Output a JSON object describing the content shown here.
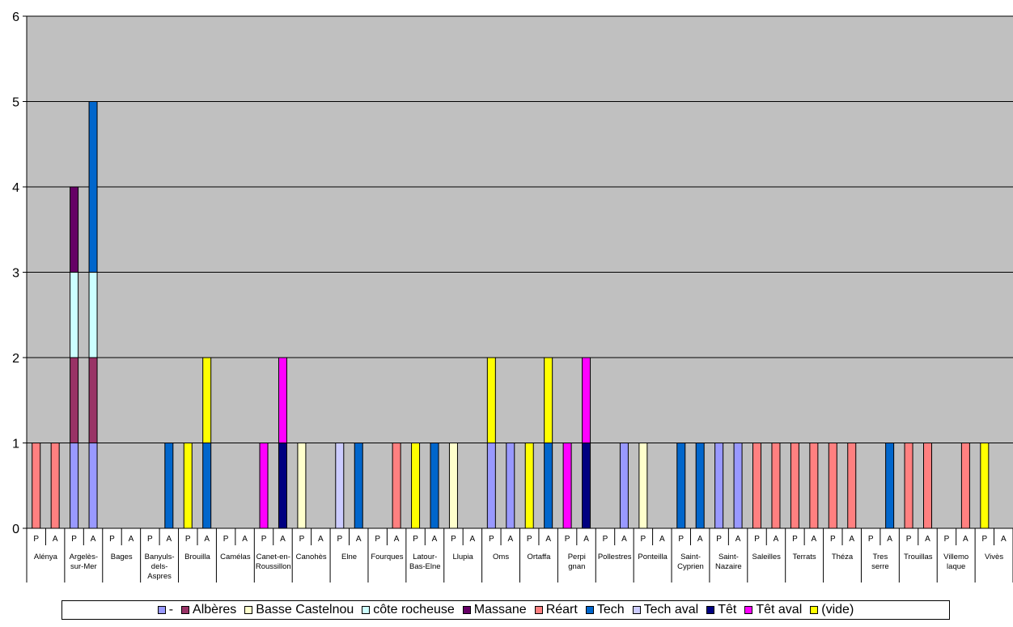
{
  "chart_data": {
    "type": "bar",
    "stacked": true,
    "ylim": [
      0,
      6
    ],
    "yticks": [
      0,
      1,
      2,
      3,
      4,
      5,
      6
    ],
    "grid": true,
    "plot_background": "#C0C0C0",
    "legend_position": "bottom",
    "bar_labels": [
      "P",
      "A"
    ],
    "groups": [
      "Alénya",
      "Argelès-sur-Mer",
      "Bages",
      "Banyuls-dels-Aspres",
      "Brouilla",
      "Camélas",
      "Canet-en-Roussillon",
      "Canohès",
      "Elne",
      "Fourques",
      "Latour-Bas-Elne",
      "Llupia",
      "Oms",
      "Ortaffa",
      "Perpignan",
      "Pollestres",
      "Ponteilla",
      "Saint-Cyprien",
      "Saint-Nazaire",
      "Saleilles",
      "Terrats",
      "Théza",
      "Tresserre",
      "Trouillas",
      "Villemolaque",
      "Vivès"
    ],
    "group_label_lines": [
      [
        "Alénya"
      ],
      [
        "Argelès-",
        "sur-Mer"
      ],
      [
        "Bages"
      ],
      [
        "Banyuls-",
        "dels-",
        "Aspres"
      ],
      [
        "Brouilla"
      ],
      [
        "Camélas"
      ],
      [
        "Canet-en-",
        "Roussillon"
      ],
      [
        "Canohès"
      ],
      [
        "Elne"
      ],
      [
        "Fourques"
      ],
      [
        "Latour-",
        "Bas-Elne"
      ],
      [
        "Llupia"
      ],
      [
        "Oms"
      ],
      [
        "Ortaffa"
      ],
      [
        "Perpi",
        "gnan"
      ],
      [
        "Pollestres"
      ],
      [
        "Ponteilla"
      ],
      [
        "Saint-",
        "Cyprien"
      ],
      [
        "Saint-",
        "Nazaire"
      ],
      [
        "Saleilles"
      ],
      [
        "Terrats"
      ],
      [
        "Théza"
      ],
      [
        "Tres",
        "serre"
      ],
      [
        "Trouillas"
      ],
      [
        "Villemo",
        "laque"
      ],
      [
        "Vivès"
      ]
    ],
    "series": [
      {
        "name": "-",
        "color": "#9999FF",
        "values": [
          [
            0,
            0
          ],
          [
            1,
            1
          ],
          [
            0,
            0
          ],
          [
            0,
            0
          ],
          [
            0,
            0
          ],
          [
            0,
            0
          ],
          [
            0,
            0
          ],
          [
            0,
            0
          ],
          [
            0,
            0
          ],
          [
            0,
            0
          ],
          [
            0,
            0
          ],
          [
            0,
            0
          ],
          [
            1,
            1
          ],
          [
            0,
            0
          ],
          [
            0,
            0
          ],
          [
            0,
            1
          ],
          [
            0,
            0
          ],
          [
            0,
            0
          ],
          [
            1,
            1
          ],
          [
            0,
            0
          ],
          [
            0,
            0
          ],
          [
            0,
            0
          ],
          [
            0,
            0
          ],
          [
            0,
            0
          ],
          [
            0,
            0
          ],
          [
            0,
            0
          ]
        ]
      },
      {
        "name": "Albères",
        "color": "#993366",
        "values": [
          [
            0,
            0
          ],
          [
            1,
            1
          ],
          [
            0,
            0
          ],
          [
            0,
            0
          ],
          [
            0,
            0
          ],
          [
            0,
            0
          ],
          [
            0,
            0
          ],
          [
            0,
            0
          ],
          [
            0,
            0
          ],
          [
            0,
            0
          ],
          [
            0,
            0
          ],
          [
            0,
            0
          ],
          [
            0,
            0
          ],
          [
            0,
            0
          ],
          [
            0,
            0
          ],
          [
            0,
            0
          ],
          [
            0,
            0
          ],
          [
            0,
            0
          ],
          [
            0,
            0
          ],
          [
            0,
            0
          ],
          [
            0,
            0
          ],
          [
            0,
            0
          ],
          [
            0,
            0
          ],
          [
            0,
            0
          ],
          [
            0,
            0
          ],
          [
            0,
            0
          ]
        ]
      },
      {
        "name": "Basse Castelnou",
        "color": "#FFFFCC",
        "values": [
          [
            0,
            0
          ],
          [
            0,
            0
          ],
          [
            0,
            0
          ],
          [
            0,
            0
          ],
          [
            0,
            0
          ],
          [
            0,
            0
          ],
          [
            0,
            0
          ],
          [
            1,
            0
          ],
          [
            0,
            0
          ],
          [
            0,
            0
          ],
          [
            0,
            0
          ],
          [
            1,
            0
          ],
          [
            0,
            0
          ],
          [
            0,
            0
          ],
          [
            0,
            0
          ],
          [
            0,
            0
          ],
          [
            1,
            0
          ],
          [
            0,
            0
          ],
          [
            0,
            0
          ],
          [
            0,
            0
          ],
          [
            0,
            0
          ],
          [
            0,
            0
          ],
          [
            0,
            0
          ],
          [
            0,
            0
          ],
          [
            0,
            0
          ],
          [
            0,
            0
          ]
        ]
      },
      {
        "name": "côte rocheuse",
        "color": "#CCFFFF",
        "values": [
          [
            0,
            0
          ],
          [
            1,
            1
          ],
          [
            0,
            0
          ],
          [
            0,
            0
          ],
          [
            0,
            0
          ],
          [
            0,
            0
          ],
          [
            0,
            0
          ],
          [
            0,
            0
          ],
          [
            0,
            0
          ],
          [
            0,
            0
          ],
          [
            0,
            0
          ],
          [
            0,
            0
          ],
          [
            0,
            0
          ],
          [
            0,
            0
          ],
          [
            0,
            0
          ],
          [
            0,
            0
          ],
          [
            0,
            0
          ],
          [
            0,
            0
          ],
          [
            0,
            0
          ],
          [
            0,
            0
          ],
          [
            0,
            0
          ],
          [
            0,
            0
          ],
          [
            0,
            0
          ],
          [
            0,
            0
          ],
          [
            0,
            0
          ],
          [
            0,
            0
          ]
        ]
      },
      {
        "name": "Massane",
        "color": "#660066",
        "values": [
          [
            0,
            0
          ],
          [
            1,
            0
          ],
          [
            0,
            0
          ],
          [
            0,
            0
          ],
          [
            0,
            0
          ],
          [
            0,
            0
          ],
          [
            0,
            0
          ],
          [
            0,
            0
          ],
          [
            0,
            0
          ],
          [
            0,
            0
          ],
          [
            0,
            0
          ],
          [
            0,
            0
          ],
          [
            0,
            0
          ],
          [
            0,
            0
          ],
          [
            0,
            0
          ],
          [
            0,
            0
          ],
          [
            0,
            0
          ],
          [
            0,
            0
          ],
          [
            0,
            0
          ],
          [
            0,
            0
          ],
          [
            0,
            0
          ],
          [
            0,
            0
          ],
          [
            0,
            0
          ],
          [
            0,
            0
          ],
          [
            0,
            0
          ],
          [
            0,
            0
          ]
        ]
      },
      {
        "name": "Réart",
        "color": "#FF8080",
        "values": [
          [
            1,
            1
          ],
          [
            0,
            0
          ],
          [
            0,
            0
          ],
          [
            0,
            0
          ],
          [
            0,
            0
          ],
          [
            0,
            0
          ],
          [
            0,
            0
          ],
          [
            0,
            0
          ],
          [
            0,
            0
          ],
          [
            0,
            1
          ],
          [
            0,
            0
          ],
          [
            0,
            0
          ],
          [
            0,
            0
          ],
          [
            0,
            0
          ],
          [
            0,
            0
          ],
          [
            0,
            0
          ],
          [
            0,
            0
          ],
          [
            0,
            0
          ],
          [
            0,
            0
          ],
          [
            1,
            1
          ],
          [
            1,
            1
          ],
          [
            1,
            1
          ],
          [
            0,
            0
          ],
          [
            1,
            1
          ],
          [
            0,
            1
          ],
          [
            0,
            0
          ]
        ]
      },
      {
        "name": "Tech",
        "color": "#0066CC",
        "values": [
          [
            0,
            0
          ],
          [
            0,
            2
          ],
          [
            0,
            0
          ],
          [
            0,
            1
          ],
          [
            0,
            1
          ],
          [
            0,
            0
          ],
          [
            0,
            0
          ],
          [
            0,
            0
          ],
          [
            0,
            1
          ],
          [
            0,
            0
          ],
          [
            0,
            1
          ],
          [
            0,
            0
          ],
          [
            0,
            0
          ],
          [
            0,
            1
          ],
          [
            0,
            0
          ],
          [
            0,
            0
          ],
          [
            0,
            0
          ],
          [
            1,
            1
          ],
          [
            0,
            0
          ],
          [
            0,
            0
          ],
          [
            0,
            0
          ],
          [
            0,
            0
          ],
          [
            0,
            1
          ],
          [
            0,
            0
          ],
          [
            0,
            0
          ],
          [
            0,
            0
          ]
        ]
      },
      {
        "name": "Tech aval",
        "color": "#CCCCFF",
        "values": [
          [
            0,
            0
          ],
          [
            0,
            0
          ],
          [
            0,
            0
          ],
          [
            0,
            0
          ],
          [
            0,
            0
          ],
          [
            0,
            0
          ],
          [
            0,
            0
          ],
          [
            0,
            0
          ],
          [
            1,
            0
          ],
          [
            0,
            0
          ],
          [
            0,
            0
          ],
          [
            0,
            0
          ],
          [
            0,
            0
          ],
          [
            0,
            0
          ],
          [
            0,
            0
          ],
          [
            0,
            0
          ],
          [
            0,
            0
          ],
          [
            0,
            0
          ],
          [
            0,
            0
          ],
          [
            0,
            0
          ],
          [
            0,
            0
          ],
          [
            0,
            0
          ],
          [
            0,
            0
          ],
          [
            0,
            0
          ],
          [
            0,
            0
          ],
          [
            0,
            0
          ]
        ]
      },
      {
        "name": "Têt",
        "color": "#000080",
        "values": [
          [
            0,
            0
          ],
          [
            0,
            0
          ],
          [
            0,
            0
          ],
          [
            0,
            0
          ],
          [
            0,
            0
          ],
          [
            0,
            0
          ],
          [
            0,
            1
          ],
          [
            0,
            0
          ],
          [
            0,
            0
          ],
          [
            0,
            0
          ],
          [
            0,
            0
          ],
          [
            0,
            0
          ],
          [
            0,
            0
          ],
          [
            0,
            0
          ],
          [
            0,
            1
          ],
          [
            0,
            0
          ],
          [
            0,
            0
          ],
          [
            0,
            0
          ],
          [
            0,
            0
          ],
          [
            0,
            0
          ],
          [
            0,
            0
          ],
          [
            0,
            0
          ],
          [
            0,
            0
          ],
          [
            0,
            0
          ],
          [
            0,
            0
          ],
          [
            0,
            0
          ]
        ]
      },
      {
        "name": "Têt aval",
        "color": "#FF00FF",
        "values": [
          [
            0,
            0
          ],
          [
            0,
            0
          ],
          [
            0,
            0
          ],
          [
            0,
            0
          ],
          [
            0,
            0
          ],
          [
            0,
            0
          ],
          [
            1,
            1
          ],
          [
            0,
            0
          ],
          [
            0,
            0
          ],
          [
            0,
            0
          ],
          [
            0,
            0
          ],
          [
            0,
            0
          ],
          [
            0,
            0
          ],
          [
            0,
            0
          ],
          [
            1,
            1
          ],
          [
            0,
            0
          ],
          [
            0,
            0
          ],
          [
            0,
            0
          ],
          [
            0,
            0
          ],
          [
            0,
            0
          ],
          [
            0,
            0
          ],
          [
            0,
            0
          ],
          [
            0,
            0
          ],
          [
            0,
            0
          ],
          [
            0,
            0
          ],
          [
            0,
            0
          ]
        ]
      },
      {
        "name": "(vide)",
        "color": "#FFFF00",
        "values": [
          [
            0,
            0
          ],
          [
            0,
            0
          ],
          [
            0,
            0
          ],
          [
            0,
            0
          ],
          [
            1,
            1
          ],
          [
            0,
            0
          ],
          [
            0,
            0
          ],
          [
            0,
            0
          ],
          [
            0,
            0
          ],
          [
            0,
            0
          ],
          [
            1,
            0
          ],
          [
            0,
            0
          ],
          [
            1,
            0
          ],
          [
            1,
            1
          ],
          [
            0,
            0
          ],
          [
            0,
            0
          ],
          [
            0,
            0
          ],
          [
            0,
            0
          ],
          [
            0,
            0
          ],
          [
            0,
            0
          ],
          [
            0,
            0
          ],
          [
            0,
            0
          ],
          [
            0,
            0
          ],
          [
            0,
            0
          ],
          [
            0,
            0
          ],
          [
            1,
            0
          ]
        ]
      }
    ]
  }
}
